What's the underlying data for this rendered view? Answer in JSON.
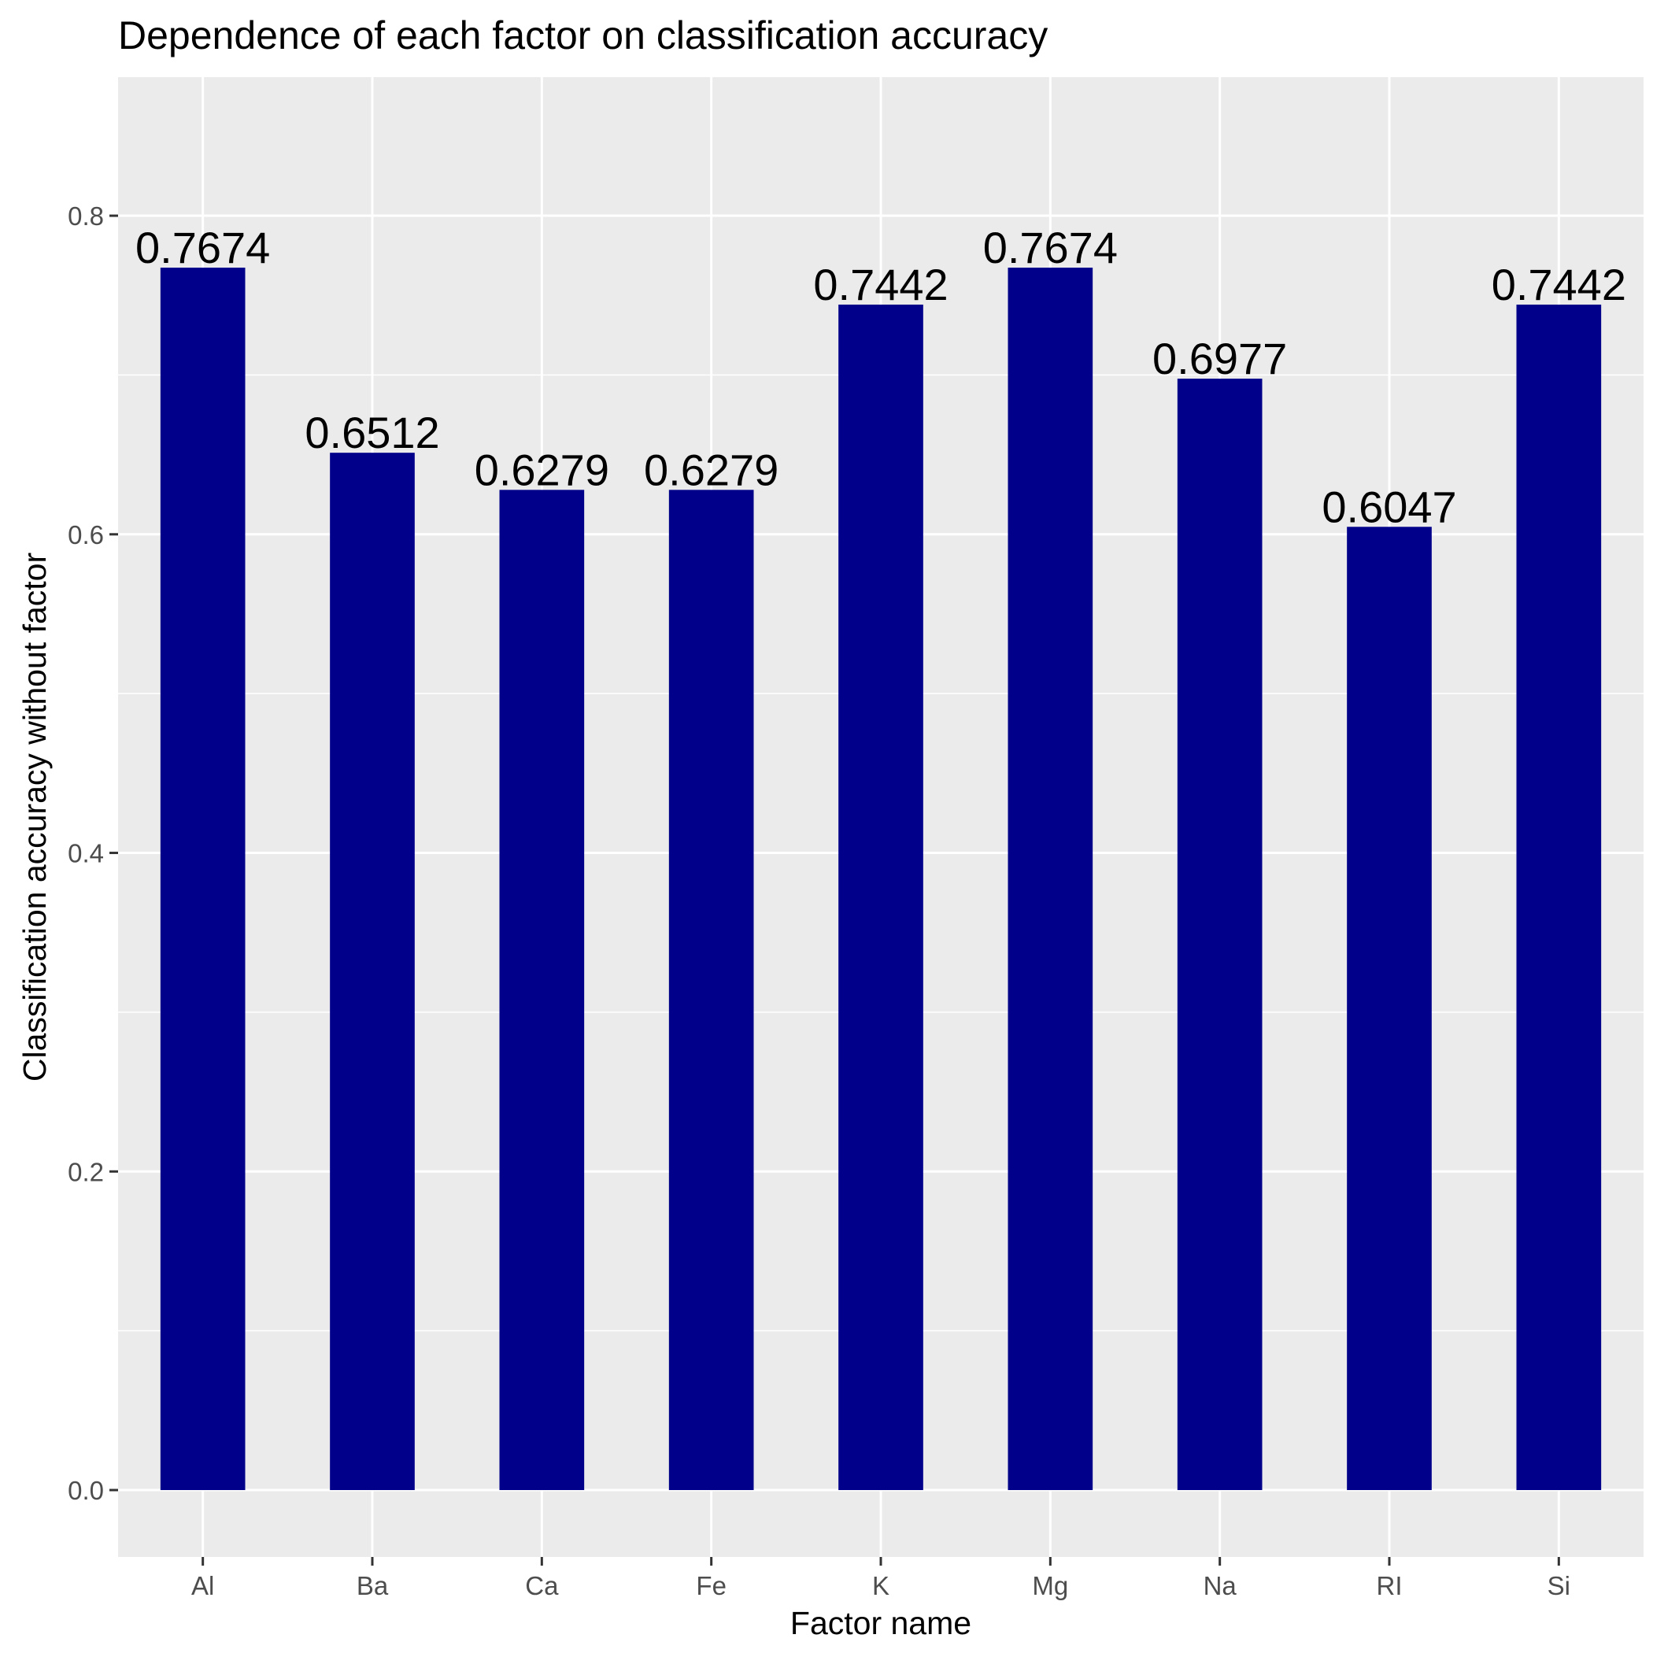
{
  "chart_data": {
    "type": "bar",
    "title": "Dependence of each factor on classification accuracy",
    "xlabel": "Factor name",
    "ylabel": "Classification accuracy without factor",
    "categories": [
      "Al",
      "Ba",
      "Ca",
      "Fe",
      "K",
      "Mg",
      "Na",
      "RI",
      "Si"
    ],
    "values": [
      0.7674,
      0.6512,
      0.6279,
      0.6279,
      0.7442,
      0.7674,
      0.6977,
      0.6047,
      0.7442
    ],
    "data_labels": [
      "0.7674",
      "0.6512",
      "0.6279",
      "0.6279",
      "0.7442",
      "0.7674",
      "0.6977",
      "0.6047",
      "0.7442"
    ],
    "ylim": [
      -0.042,
      0.887
    ],
    "yticks": [
      0.0,
      0.2,
      0.4,
      0.6,
      0.8
    ],
    "ytick_labels": [
      "0.0",
      "0.2",
      "0.4",
      "0.6",
      "0.8"
    ],
    "grid": true,
    "legend": "none",
    "colors": {
      "bar": "#00008b",
      "panel": "#ebebeb",
      "grid": "#ffffff",
      "tick": "#333333"
    }
  }
}
